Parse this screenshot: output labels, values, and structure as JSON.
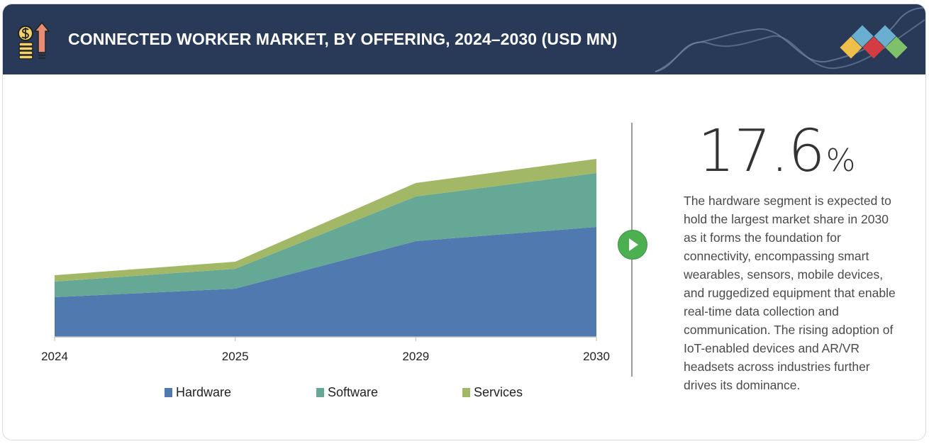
{
  "header": {
    "title": "CONNECTED WORKER MARKET, BY OFFERING, 2024–2030 (USD MN)",
    "icon": "coins-growth-arrow-icon",
    "logo": "diamond-tiles-logo"
  },
  "highlight": {
    "value": "17.6",
    "unit": "%",
    "description": "The hardware segment is expected to hold the largest market share in 2030 as it forms the foundation for connectivity, encompassing smart wearables, sensors, mobile devices, and ruggedized equipment that enable real-time data collection and communication. The rising adoption of IoT-enabled devices and AR/VR headsets across industries further drives its dominance."
  },
  "chart_data": {
    "type": "area",
    "stacked": true,
    "title": "CONNECTED WORKER MARKET, BY OFFERING, 2024–2030 (USD MN)",
    "categories": [
      "2024",
      "2025",
      "2029",
      "2030"
    ],
    "y_axis_shown": false,
    "grid": false,
    "legend_placement": "bottom",
    "series": [
      {
        "name": "Hardware",
        "color": "#5079b0",
        "values": [
          56,
          68,
          135,
          155
        ]
      },
      {
        "name": "Software",
        "color": "#64a895",
        "values": [
          22,
          28,
          63,
          76
        ]
      },
      {
        "name": "Services",
        "color": "#a3b866",
        "values": [
          9,
          10,
          19,
          20
        ]
      }
    ]
  }
}
